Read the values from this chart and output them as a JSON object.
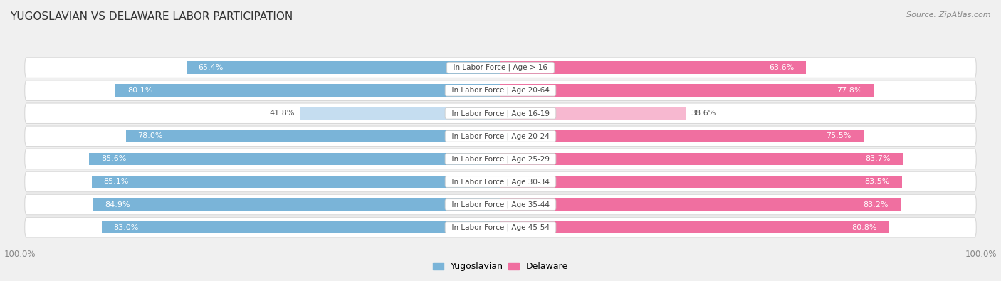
{
  "title": "YUGOSLAVIAN VS DELAWARE LABOR PARTICIPATION",
  "source": "Source: ZipAtlas.com",
  "categories": [
    "In Labor Force | Age > 16",
    "In Labor Force | Age 20-64",
    "In Labor Force | Age 16-19",
    "In Labor Force | Age 20-24",
    "In Labor Force | Age 25-29",
    "In Labor Force | Age 30-34",
    "In Labor Force | Age 35-44",
    "In Labor Force | Age 45-54"
  ],
  "yugoslavian_values": [
    65.4,
    80.1,
    41.8,
    78.0,
    85.6,
    85.1,
    84.9,
    83.0
  ],
  "delaware_values": [
    63.6,
    77.8,
    38.6,
    75.5,
    83.7,
    83.5,
    83.2,
    80.8
  ],
  "yugoslav_color_full": "#7ab4d8",
  "yugoslav_color_light": "#c5ddf0",
  "delaware_color_full": "#f06fa0",
  "delaware_color_light": "#f7b8d0",
  "background_color": "#f0f0f0",
  "row_bg_color": "#ffffff",
  "row_border_color": "#d8d8d8",
  "center_label_color": "#444444",
  "title_color": "#333333",
  "source_color": "#888888",
  "axis_tick_color": "#888888",
  "legend_yugoslav_color": "#7ab4d8",
  "legend_delaware_color": "#f06fa0",
  "value_label_color_light": "#555555",
  "value_label_color_dark": "#ffffff"
}
